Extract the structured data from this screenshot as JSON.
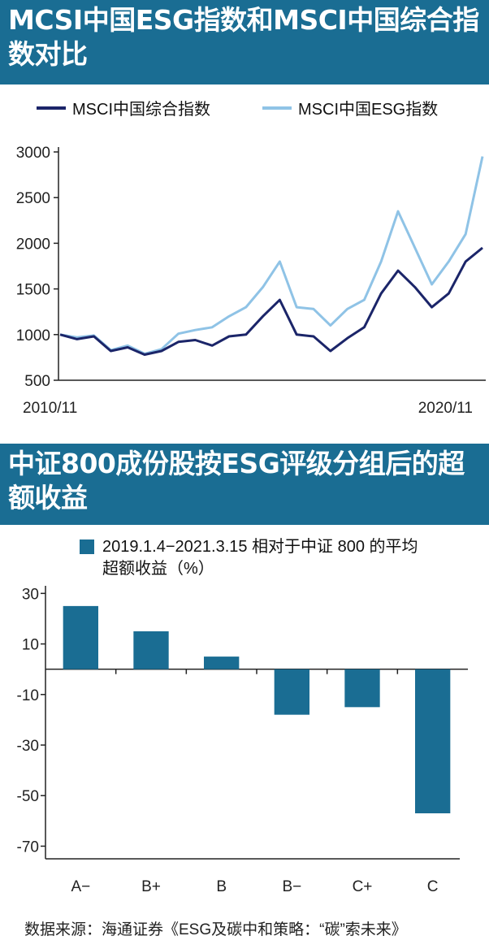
{
  "chart_data": [
    {
      "type": "line",
      "title": "MCSI中国ESG指数和MSCI中国综合指数对比",
      "x_tick_labels": [
        "2010/11",
        "2020/11"
      ],
      "ylim": [
        500,
        3000
      ],
      "yticks": [
        3000,
        2500,
        2000,
        1500,
        1000,
        500
      ],
      "grid": false,
      "legend_position": "top",
      "x_index": [
        0,
        5,
        10,
        15,
        20,
        25,
        30,
        35,
        40,
        45,
        50,
        55,
        60,
        65,
        70,
        75,
        80,
        85,
        90,
        95,
        100,
        105,
        110,
        115,
        120,
        125
      ],
      "series": [
        {
          "name": "MSCI中国综合指数",
          "color": "#1b2569",
          "values": [
            1000,
            950,
            980,
            820,
            860,
            780,
            820,
            920,
            940,
            880,
            980,
            1000,
            1200,
            1380,
            1000,
            980,
            820,
            960,
            1080,
            1450,
            1700,
            1520,
            1300,
            1450,
            1800,
            1950
          ]
        },
        {
          "name": "MSCI中国ESG指数",
          "color": "#8fc3e6",
          "values": [
            1000,
            970,
            990,
            830,
            880,
            790,
            840,
            1010,
            1050,
            1080,
            1200,
            1300,
            1520,
            1800,
            1300,
            1280,
            1100,
            1280,
            1380,
            1800,
            2350,
            1950,
            1550,
            1800,
            2100,
            2950
          ]
        }
      ]
    },
    {
      "type": "bar",
      "title": "中证800成份股按ESG评级分组后的超额收益",
      "categories": [
        "A−",
        "B+",
        "B",
        "B−",
        "C+",
        "C"
      ],
      "series": [
        {
          "name": "2019.1.4−2021.3.15 相对于中证 800 的平均超额收益（%）",
          "color": "#1a6d93",
          "values": [
            25,
            15,
            5,
            -18,
            -15,
            -57
          ]
        }
      ],
      "ylim": [
        -75,
        33
      ],
      "yticks": [
        30,
        10,
        -10,
        -30,
        -50,
        -70
      ],
      "grid": false,
      "legend_position": "top-left"
    }
  ],
  "title1": "MCSI中国ESG指数和MSCI中国综合指数对比",
  "title2": "中证800成份股按ESG评级分组后的超额收益",
  "legend1": {
    "composite_label": "MSCI中国综合指数",
    "esg_label": "MSCI中国ESG指数",
    "composite_color": "#1b2569",
    "esg_color": "#8fc3e6"
  },
  "legend2": {
    "line1": "2019.1.4−2021.3.15 相对于中证 800 的平均",
    "line2": "超额收益（%）",
    "color": "#1a6d93"
  },
  "source": "数据来源：海通证券《ESG及碳中和策略：“碳”索未来》"
}
